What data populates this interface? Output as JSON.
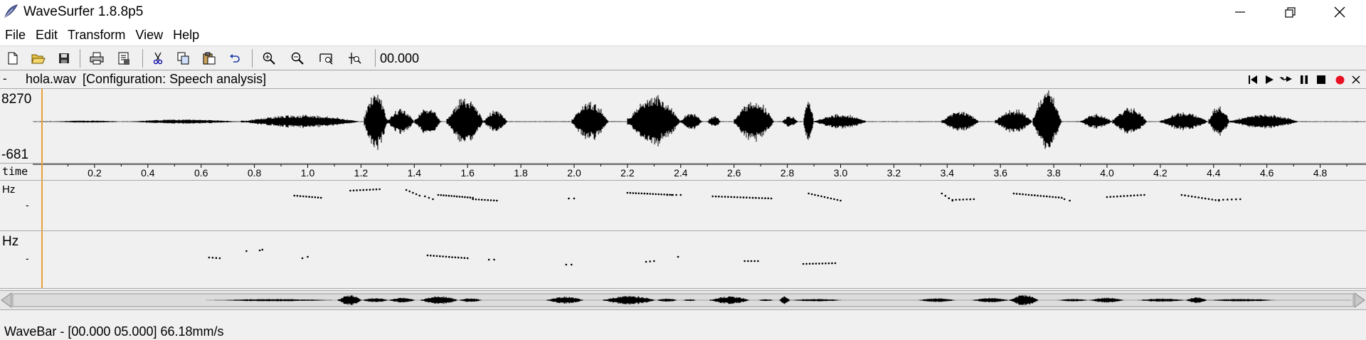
{
  "window": {
    "title": "WaveSurfer 1.8.8p5",
    "app_icon": "wavesurfer-feather-icon"
  },
  "menu": [
    "File",
    "Edit",
    "Transform",
    "View",
    "Help"
  ],
  "toolbar": {
    "time_value": "00.000",
    "icons": [
      "new-file-icon",
      "open-folder-icon",
      "save-icon",
      "print-icon",
      "export-icon",
      "cut-icon",
      "copy-icon",
      "paste-icon",
      "undo-icon",
      "zoom-in-icon",
      "zoom-out-icon",
      "zoom-fit-icon",
      "zoom-selection-icon"
    ]
  },
  "file": {
    "dash": "-",
    "name": "hola.wav",
    "config": "[Configuration: Speech analysis]"
  },
  "playback": [
    "skip-start-icon",
    "play-icon",
    "play-loop-icon",
    "pause-icon",
    "stop-icon",
    "record-icon",
    "close-icon"
  ],
  "waveform": {
    "ymax": "8270",
    "ymin": "-681"
  },
  "time_axis": {
    "label": "time",
    "ticks": [
      "0.2",
      "0.4",
      "0.6",
      "0.8",
      "1.0",
      "1.2",
      "1.4",
      "1.6",
      "1.8",
      "2.0",
      "2.2",
      "2.4",
      "2.6",
      "2.8",
      "3.0",
      "3.2",
      "3.4",
      "3.6",
      "3.8",
      "4.0",
      "4.2",
      "4.4",
      "4.6",
      "4.8"
    ],
    "tick_values": [
      0.2,
      0.4,
      0.6,
      0.8,
      1.0,
      1.2,
      1.4,
      1.6,
      1.8,
      2.0,
      2.2,
      2.4,
      2.6,
      2.8,
      3.0,
      3.2,
      3.4,
      3.6,
      3.8,
      4.0,
      4.2,
      4.4,
      4.6,
      4.8
    ]
  },
  "pitch_pane1": {
    "unit": "Hz",
    "tick": "-"
  },
  "pitch_pane2": {
    "unit": "Hz",
    "tick": "-"
  },
  "status": "WaveBar - [00.000 05.000] 66.18mm/s",
  "colors": {
    "cursor": "#e8a13a",
    "record": "#e81123",
    "background": "#f0f0f0"
  }
}
